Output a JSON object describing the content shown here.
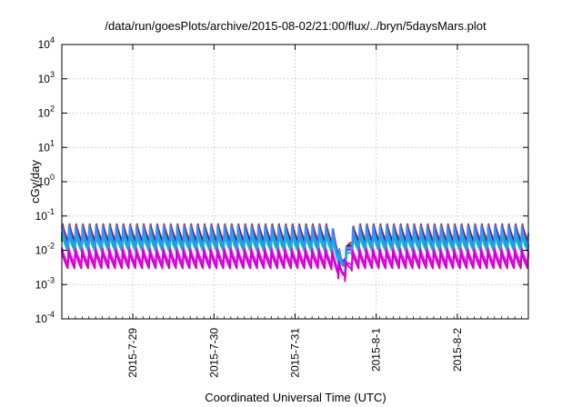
{
  "chart_data": {
    "type": "line",
    "title": "/data/run/goesPlots/archive/2015-08-02/21:00/flux/../bryn/5daysMars.plot",
    "xlabel": "Coordinated Universal Time (UTC)",
    "ylabel": "cGy/day",
    "x_range": [
      "2015-07-28 03:00",
      "2015-08-02 21:00"
    ],
    "x_ticks": [
      "2015-7-29",
      "2015-7-30",
      "2015-7-31",
      "2015-8-1",
      "2015-8-2"
    ],
    "y_scale": "log",
    "ylim": [
      0.0001,
      10000
    ],
    "y_ticks": [
      {
        "base": "10",
        "exp": "-4",
        "value": 0.0001
      },
      {
        "base": "10",
        "exp": "-3",
        "value": 0.001
      },
      {
        "base": "10",
        "exp": "-2",
        "value": 0.01
      },
      {
        "base": "10",
        "exp": "-1",
        "value": 0.1
      },
      {
        "base": "10",
        "exp": "0",
        "value": 1
      },
      {
        "base": "10",
        "exp": "1",
        "value": 10
      },
      {
        "base": "10",
        "exp": "2",
        "value": 100
      },
      {
        "base": "10",
        "exp": "3",
        "value": 1000
      },
      {
        "base": "10",
        "exp": "4",
        "value": 10000
      }
    ],
    "grid": true,
    "legend": "none",
    "event": {
      "dip_time": "2015-07-31 14:00",
      "min_value": 0.0009
    },
    "series": [
      {
        "color": "#e01010",
        "peak": 0.06,
        "trough": 0.018
      },
      {
        "color": "#0b0bd0",
        "peak": 0.05,
        "trough": 0.015
      },
      {
        "color": "#9a2ad0",
        "peak": 0.04,
        "trough": 0.011
      },
      {
        "color": "#00c8b8",
        "peak": 0.03,
        "trough": 0.009
      },
      {
        "color": "#2a9aff",
        "peak": 0.055,
        "trough": 0.013
      },
      {
        "color": "#ff00ff",
        "peak": 0.012,
        "trough": 0.004
      },
      {
        "color": "#d000d0",
        "peak": 0.01,
        "trough": 0.003
      }
    ]
  }
}
